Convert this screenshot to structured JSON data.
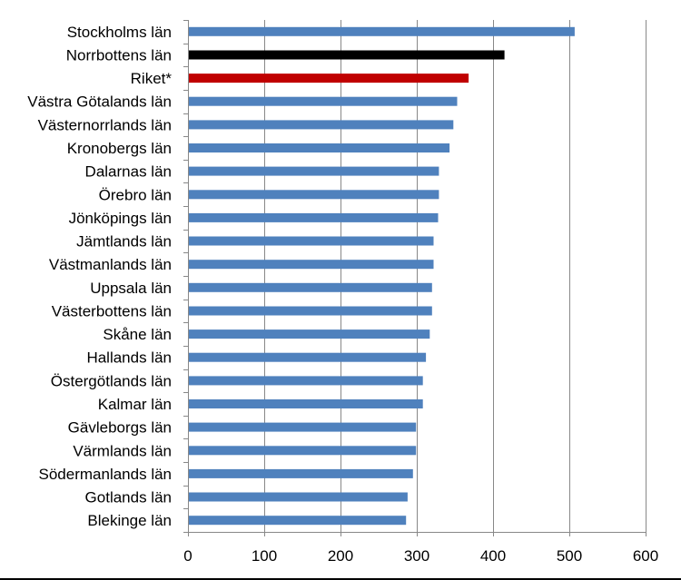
{
  "chart_data": {
    "type": "bar",
    "orientation": "horizontal",
    "categories": [
      "Stockholms län",
      "Norrbottens län",
      "Riket*",
      "Västra Götalands län",
      "Västernorrlands län",
      "Kronobergs län",
      "Dalarnas län",
      "Örebro län",
      "Jönköpings län",
      "Jämtlands län",
      "Västmanlands län",
      "Uppsala län",
      "Västerbottens län",
      "Skåne län",
      "Hallands län",
      "Östergötlands län",
      "Kalmar län",
      "Gävleborgs län",
      "Värmlands län",
      "Södermanlands län",
      "Gotlands län",
      "Blekinge län"
    ],
    "values": [
      507,
      415,
      368,
      353,
      348,
      343,
      329,
      329,
      328,
      322,
      322,
      320,
      320,
      317,
      312,
      308,
      308,
      299,
      299,
      295,
      288,
      286
    ],
    "bar_colors": [
      "#4F81BD",
      "#000000",
      "#C00000",
      "#4F81BD",
      "#4F81BD",
      "#4F81BD",
      "#4F81BD",
      "#4F81BD",
      "#4F81BD",
      "#4F81BD",
      "#4F81BD",
      "#4F81BD",
      "#4F81BD",
      "#4F81BD",
      "#4F81BD",
      "#4F81BD",
      "#4F81BD",
      "#4F81BD",
      "#4F81BD",
      "#4F81BD",
      "#4F81BD",
      "#4F81BD"
    ],
    "xlim": [
      0,
      600
    ],
    "xticks": [
      0,
      100,
      200,
      300,
      400,
      500,
      600
    ],
    "xtick_labels": [
      "0",
      "100",
      "200",
      "300",
      "400",
      "500",
      "600"
    ],
    "grid": "vertical",
    "title": "",
    "xlabel": "",
    "ylabel": "",
    "legend": "none"
  }
}
